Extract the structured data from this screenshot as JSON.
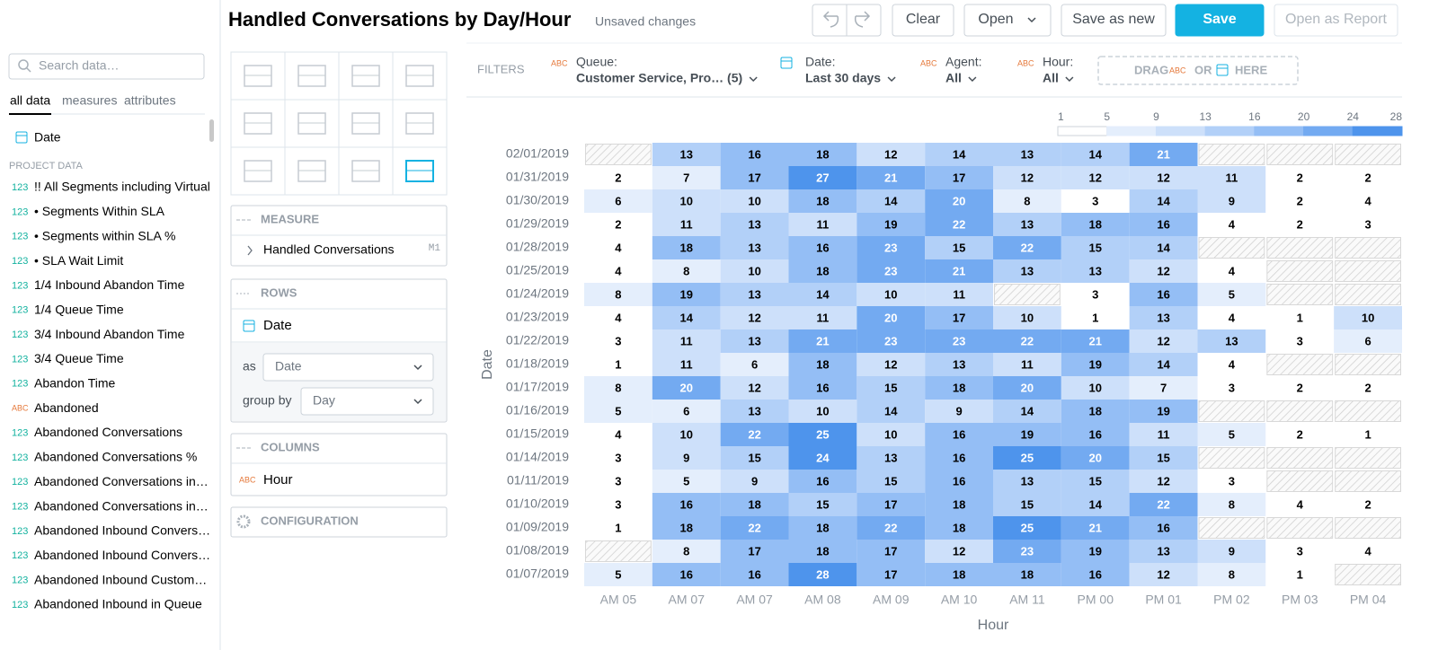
{
  "header": {
    "title": "Handled Conversations by Day/Hour",
    "status": "Unsaved changes",
    "buttons": [
      "Clear",
      "Open",
      "Save as new",
      "Save",
      "Open as Report"
    ]
  },
  "sidebar": {
    "search_placeholder": "Search data…",
    "tabs": [
      "all data",
      "measures",
      "attributes"
    ],
    "date_item": "Date",
    "section": "PROJECT DATA",
    "items": [
      {
        "type": "123",
        "name": "!! All Segments including Virtual"
      },
      {
        "type": "123",
        "name": "• Segments Within SLA"
      },
      {
        "type": "123",
        "name": "• Segments within SLA %"
      },
      {
        "type": "123",
        "name": "• SLA Wait Limit"
      },
      {
        "type": "123",
        "name": "1/4 Inbound Abandon Time"
      },
      {
        "type": "123",
        "name": "1/4 Queue Time"
      },
      {
        "type": "123",
        "name": "3/4 Inbound Abandon Time"
      },
      {
        "type": "123",
        "name": "3/4 Queue Time"
      },
      {
        "type": "123",
        "name": "Abandon Time"
      },
      {
        "type": "ABC",
        "name": "Abandoned"
      },
      {
        "type": "123",
        "name": "Abandoned Conversations"
      },
      {
        "type": "123",
        "name": "Abandoned Conversations %"
      },
      {
        "type": "123",
        "name": "Abandoned Conversations in…"
      },
      {
        "type": "123",
        "name": "Abandoned Conversations in…"
      },
      {
        "type": "123",
        "name": "Abandoned Inbound Convers…"
      },
      {
        "type": "123",
        "name": "Abandoned Inbound Convers…"
      },
      {
        "type": "123",
        "name": "Abandoned Inbound Custom…"
      },
      {
        "type": "123",
        "name": "Abandoned Inbound in Queue"
      }
    ]
  },
  "config": {
    "measure": {
      "label": "MEASURE",
      "item": "Handled Conversations",
      "tag": "M1"
    },
    "rows": {
      "label": "ROWS",
      "item": "Date",
      "as_label": "as",
      "as_value": "Date",
      "group_label": "group by",
      "group_value": "Day"
    },
    "columns": {
      "label": "COLUMNS",
      "item_type": "ABC",
      "item": "Hour"
    },
    "configuration": "CONFIGURATION"
  },
  "filters": {
    "label": "FILTERS",
    "items": [
      {
        "type": "ABC",
        "name": "Queue:",
        "value": "Customer Service, Pro… (5)"
      },
      {
        "name": "Date:",
        "value": "Last 30 days"
      },
      {
        "type": "ABC",
        "name": "Agent:",
        "value": "All"
      },
      {
        "type": "ABC",
        "name": "Hour:",
        "value": "All"
      }
    ],
    "drop": {
      "drag": "DRAG",
      "abc": "ABC",
      "or": "OR",
      "here": "HERE"
    }
  },
  "chart_data": {
    "type": "heatmap",
    "x_label": "Hour",
    "y_label": "Date",
    "x_categories": [
      "AM 05",
      "AM 07",
      "AM 07",
      "AM 08",
      "AM 09",
      "AM 10",
      "AM 11",
      "PM 00",
      "PM 01",
      "PM 02",
      "PM 03",
      "PM 04"
    ],
    "y_categories": [
      "02/01/2019",
      "01/31/2019",
      "01/30/2019",
      "01/29/2019",
      "01/28/2019",
      "01/25/2019",
      "01/24/2019",
      "01/23/2019",
      "01/22/2019",
      "01/18/2019",
      "01/17/2019",
      "01/16/2019",
      "01/15/2019",
      "01/14/2019",
      "01/11/2019",
      "01/10/2019",
      "01/09/2019",
      "01/08/2019",
      "01/07/2019"
    ],
    "values": [
      [
        null,
        13,
        16,
        18,
        12,
        14,
        13,
        14,
        21,
        null,
        null,
        null
      ],
      [
        2,
        7,
        17,
        27,
        21,
        17,
        12,
        12,
        12,
        11,
        2,
        2
      ],
      [
        6,
        10,
        10,
        18,
        14,
        20,
        8,
        3,
        14,
        9,
        2,
        4
      ],
      [
        2,
        11,
        13,
        11,
        19,
        22,
        13,
        18,
        16,
        4,
        2,
        3
      ],
      [
        4,
        18,
        13,
        16,
        23,
        15,
        22,
        15,
        14,
        null,
        null,
        null
      ],
      [
        4,
        8,
        10,
        18,
        23,
        21,
        13,
        13,
        12,
        4,
        null,
        null
      ],
      [
        8,
        19,
        13,
        14,
        10,
        11,
        null,
        3,
        16,
        5,
        null,
        null
      ],
      [
        4,
        14,
        12,
        11,
        20,
        17,
        10,
        1,
        13,
        4,
        1,
        10
      ],
      [
        3,
        11,
        13,
        21,
        23,
        23,
        22,
        21,
        12,
        13,
        3,
        6
      ],
      [
        1,
        11,
        6,
        18,
        12,
        13,
        11,
        19,
        14,
        4,
        null,
        null
      ],
      [
        8,
        20,
        12,
        16,
        15,
        18,
        20,
        10,
        7,
        3,
        2,
        2
      ],
      [
        5,
        6,
        13,
        10,
        14,
        9,
        14,
        18,
        19,
        null,
        null,
        null
      ],
      [
        4,
        10,
        22,
        25,
        10,
        16,
        19,
        16,
        11,
        5,
        2,
        1
      ],
      [
        3,
        9,
        15,
        24,
        13,
        16,
        25,
        20,
        15,
        null,
        null,
        null
      ],
      [
        3,
        5,
        9,
        16,
        15,
        16,
        13,
        15,
        12,
        3,
        null,
        null
      ],
      [
        3,
        16,
        18,
        15,
        17,
        18,
        15,
        14,
        22,
        8,
        4,
        2
      ],
      [
        1,
        18,
        22,
        18,
        22,
        18,
        25,
        21,
        16,
        null,
        null,
        null
      ],
      [
        null,
        8,
        17,
        18,
        17,
        12,
        23,
        19,
        13,
        9,
        3,
        4
      ],
      [
        5,
        16,
        16,
        28,
        17,
        18,
        18,
        16,
        12,
        8,
        1,
        null
      ]
    ],
    "legend_ticks": [
      1,
      5,
      9,
      13,
      16,
      20,
      24,
      28
    ],
    "colors": [
      "#ffffff",
      "#e4eefc",
      "#cde0fa",
      "#b2d0f8",
      "#94bef5",
      "#73aaf1",
      "#4e94ec"
    ]
  }
}
